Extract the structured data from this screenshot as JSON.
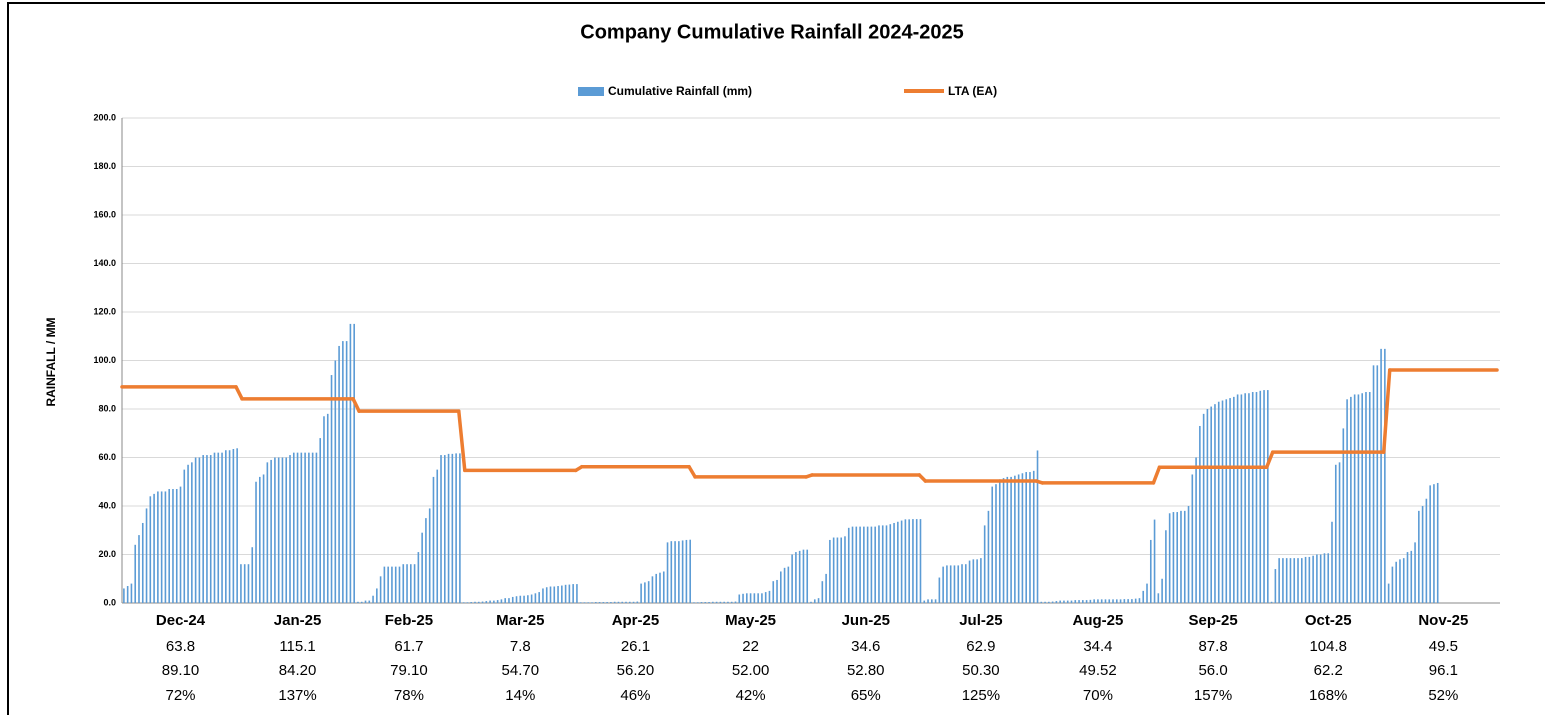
{
  "chart_data": {
    "type": "bar",
    "title": "Company Cumulative Rainfall 2024-2025",
    "y_label": "RAINFALL / MM",
    "categories": [
      "Dec-24",
      "Jan-25",
      "Feb-25",
      "Mar-25",
      "Apr-25",
      "May-25",
      "Jun-25",
      "Jul-25",
      "Aug-25",
      "Sep-25",
      "Oct-25",
      "Nov-25"
    ],
    "series": [
      {
        "name": "Cumulative Rainfall (mm)",
        "color": "#5b9bd5"
      },
      {
        "name": "LTA (EA)",
        "color": "#ed7d31"
      }
    ],
    "daily": [
      [
        6,
        7,
        8,
        24,
        28,
        33,
        39,
        44,
        45,
        46,
        46,
        46,
        47,
        47,
        47,
        48,
        55,
        57,
        58,
        60,
        60,
        61,
        61,
        61,
        62,
        62,
        62,
        63,
        63,
        63.5,
        63.8
      ],
      [
        16,
        16,
        16,
        23,
        50,
        52,
        53,
        58,
        59,
        60,
        60,
        60,
        60,
        61,
        62,
        62,
        62,
        62,
        62,
        62,
        62,
        68,
        77,
        78,
        94,
        100,
        106,
        108,
        108,
        115.1,
        115.1
      ],
      [
        0.5,
        0.5,
        1,
        1,
        3,
        6,
        11,
        15,
        15,
        15,
        15,
        15,
        16,
        16,
        16,
        16,
        21,
        29,
        35,
        39,
        52,
        55,
        61,
        61,
        61.5,
        61.5,
        61.7,
        61.7
      ],
      [
        0.3,
        0.3,
        0.4,
        0.5,
        0.5,
        0.6,
        0.8,
        1,
        1,
        1.2,
        1.5,
        2,
        2,
        2.5,
        2.8,
        3,
        3,
        3.2,
        3.5,
        4,
        4.5,
        6,
        6.5,
        6.8,
        6.8,
        7,
        7.2,
        7.5,
        7.6,
        7.8,
        7.8
      ],
      [
        0.3,
        0.3,
        0.3,
        0.3,
        0.4,
        0.4,
        0.4,
        0.4,
        0.4,
        0.5,
        0.5,
        0.5,
        0.5,
        0.5,
        0.5,
        0.6,
        8,
        8.5,
        9,
        11,
        12,
        12.5,
        13,
        25,
        25.5,
        25.5,
        25.5,
        25.8,
        26,
        26.1
      ],
      [
        0.3,
        0.3,
        0.4,
        0.4,
        0.4,
        0.5,
        0.5,
        0.5,
        0.5,
        0.5,
        0.5,
        0.6,
        3.5,
        3.8,
        4,
        4,
        4,
        4,
        4,
        4.5,
        5,
        9,
        9.5,
        13,
        14.5,
        15,
        20,
        21,
        21.5,
        22,
        22
      ],
      [
        0.5,
        1.5,
        2,
        9,
        12,
        26,
        27,
        27,
        27,
        27.5,
        31,
        31.5,
        31.5,
        31.5,
        31.5,
        31.5,
        31.5,
        31.5,
        32,
        32,
        32,
        32.5,
        33,
        33.5,
        34,
        34.5,
        34.5,
        34.6,
        34.6,
        34.6
      ],
      [
        1,
        1.5,
        1.5,
        1.5,
        10.5,
        15,
        15.5,
        15.5,
        15.5,
        15.5,
        16,
        16,
        17.5,
        18,
        18,
        18.5,
        32,
        38,
        48,
        49,
        51,
        51.5,
        52,
        52,
        52.5,
        53,
        53.5,
        54,
        54,
        54.5,
        62.9
      ],
      [
        0.5,
        0.5,
        0.5,
        0.6,
        0.8,
        1,
        1,
        1,
        1,
        1.2,
        1.2,
        1.2,
        1.2,
        1.3,
        1.5,
        1.5,
        1.5,
        1.5,
        1.5,
        1.5,
        1.5,
        1.5,
        1.6,
        1.6,
        1.6,
        1.8,
        2,
        5,
        8,
        26,
        34.4
      ],
      [
        4,
        10,
        30,
        37,
        37.5,
        37.5,
        38,
        38,
        40,
        53,
        60,
        73,
        78,
        80,
        81,
        82,
        83,
        83.5,
        84,
        84.5,
        85,
        86,
        86,
        86.5,
        86.5,
        87,
        87,
        87.5,
        87.8,
        87.8
      ],
      [
        0.5,
        14,
        18.5,
        18.5,
        18.5,
        18.5,
        18.5,
        18.5,
        18.5,
        19,
        19,
        19.5,
        20,
        20,
        20.5,
        20.5,
        33.5,
        57,
        58,
        72,
        84,
        85,
        86,
        86,
        86.5,
        87,
        87,
        98,
        98,
        104.8,
        104.8
      ],
      [
        8,
        15,
        17,
        18,
        18.5,
        21,
        21.5,
        25,
        38,
        40,
        43,
        48.5,
        49,
        49.5,
        null,
        null,
        null,
        null,
        null,
        null,
        null,
        null,
        null,
        null,
        null,
        null,
        null,
        null,
        null,
        null
      ]
    ],
    "monthly_rainfall": [
      63.8,
      115.1,
      61.7,
      7.8,
      26.1,
      22.0,
      34.6,
      62.9,
      34.4,
      87.8,
      104.8,
      49.5
    ],
    "lta_values": [
      89.1,
      84.2,
      79.1,
      54.7,
      56.2,
      52.0,
      52.8,
      50.3,
      49.52,
      56.0,
      62.2,
      96.1
    ],
    "lta_labels": [
      "89.10",
      "84.20",
      "79.10",
      "54.70",
      "56.20",
      "52.00",
      "52.80",
      "50.30",
      "49.52",
      "56.0",
      "62.2",
      "96.1"
    ],
    "percent_values": [
      72,
      137,
      78,
      14,
      46,
      42,
      65,
      125,
      70,
      157,
      168,
      52
    ],
    "percent_labels": [
      "72%",
      "137%",
      "78%",
      "14%",
      "46%",
      "42%",
      "65%",
      "125%",
      "70%",
      "157%",
      "168%",
      "52%"
    ],
    "ylim": [
      0,
      200
    ],
    "yticks": [
      {
        "value": 0,
        "label": "0.0"
      },
      {
        "value": 20,
        "label": "20.0"
      },
      {
        "value": 40,
        "label": "40.0"
      },
      {
        "value": 60,
        "label": "60.0"
      },
      {
        "value": 80,
        "label": "80.0"
      },
      {
        "value": 100,
        "label": "100.0"
      },
      {
        "value": 120,
        "label": "120.0"
      },
      {
        "value": 140,
        "label": "140.0"
      },
      {
        "value": 160,
        "label": "160.0"
      },
      {
        "value": 180,
        "label": "180.0"
      },
      {
        "value": 200,
        "label": "200.0"
      }
    ],
    "grid": true
  }
}
